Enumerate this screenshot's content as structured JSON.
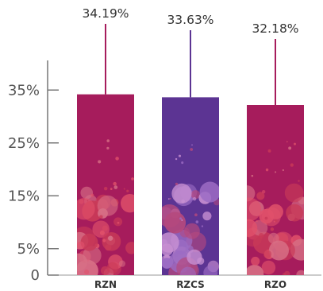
{
  "chart_data": {
    "type": "bar",
    "title": "",
    "xlabel": "",
    "ylabel": "",
    "categories": [
      "RZN",
      "RZCS",
      "RZO"
    ],
    "values": [
      34.19,
      33.63,
      32.18
    ],
    "value_labels": [
      "34.19%",
      "33.63%",
      "32.18%"
    ],
    "bar_colors": [
      "#a61c5c",
      "#5c3493",
      "#a61c5c"
    ],
    "splatter_colors": [
      [
        "#c93a58",
        "#e0506a",
        "#d76f85"
      ],
      [
        "#9c6cc4",
        "#c890d2",
        "#b5497e"
      ],
      [
        "#c93a58",
        "#e0506a",
        "#d76f85"
      ]
    ],
    "ylim": [
      0,
      40
    ],
    "yticks": [
      {
        "value": 0,
        "label": "0"
      },
      {
        "value": 5,
        "label": "5%"
      },
      {
        "value": 15,
        "label": "15%"
      },
      {
        "value": 25,
        "label": "25%"
      },
      {
        "value": 35,
        "label": "35%"
      }
    ],
    "grid": false,
    "legend": "none"
  }
}
